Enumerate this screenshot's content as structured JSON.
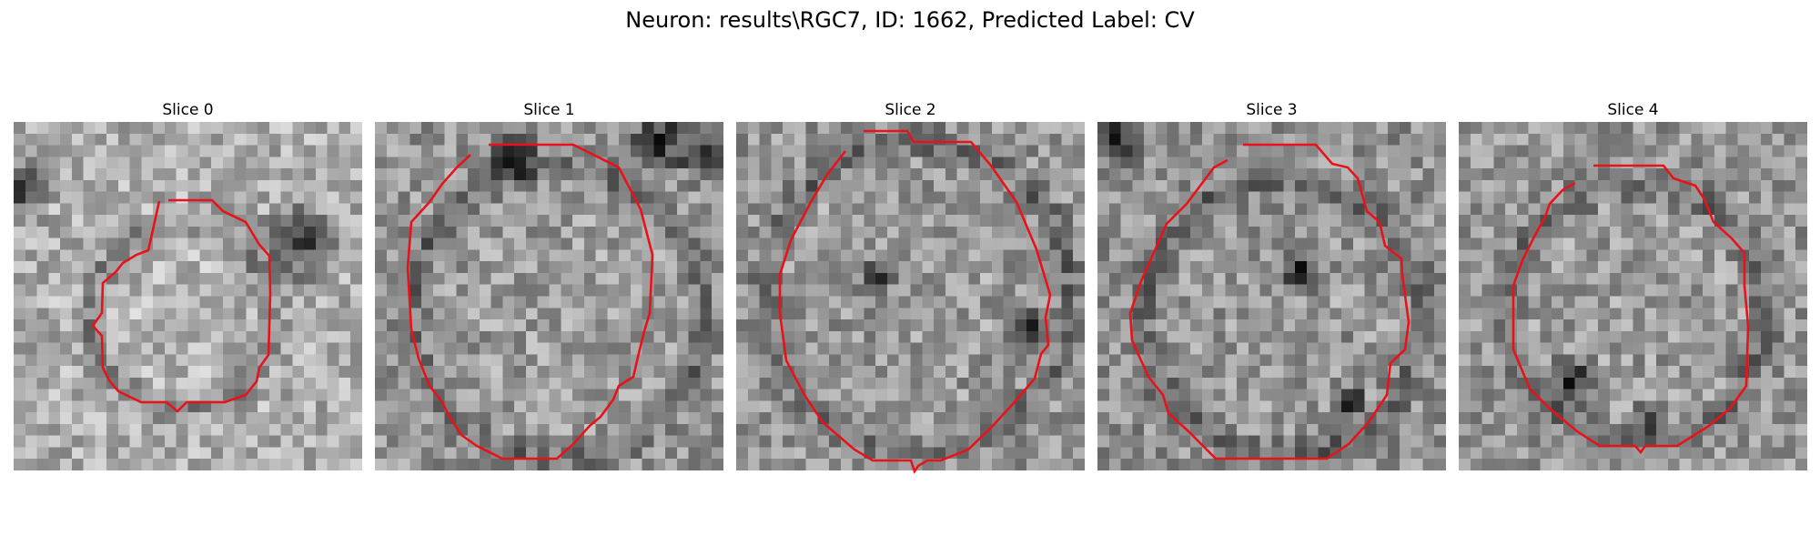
{
  "figure": {
    "title": "Neuron: results\\RGC7, ID: 1662, Predicted Label: CV"
  },
  "colors": {
    "contour": "#e8121a",
    "background": "#ffffff"
  },
  "panels": [
    {
      "title": "Slice 0"
    },
    {
      "title": "Slice 1"
    },
    {
      "title": "Slice 2"
    },
    {
      "title": "Slice 3"
    },
    {
      "title": "Slice 4"
    }
  ]
}
